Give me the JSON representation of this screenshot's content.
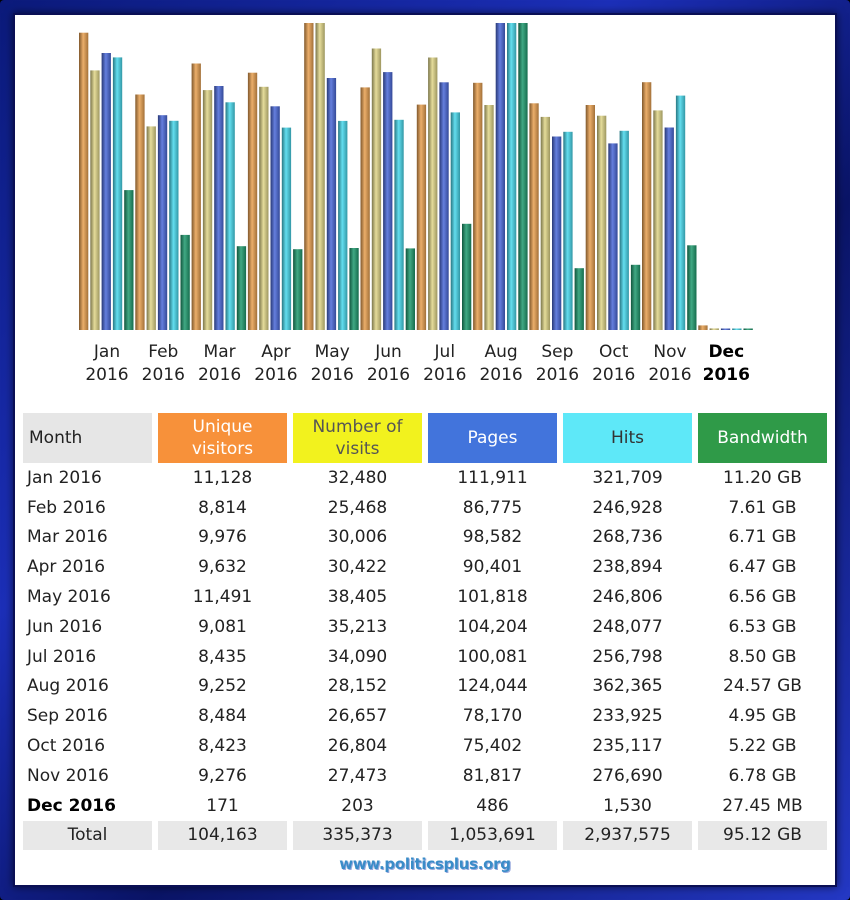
{
  "chart_data": {
    "type": "bar",
    "categories": [
      "Jan 2016",
      "Feb 2016",
      "Mar 2016",
      "Apr 2016",
      "May 2016",
      "Jun 2016",
      "Jul 2016",
      "Aug 2016",
      "Sep 2016",
      "Oct 2016",
      "Nov 2016",
      "Dec 2016"
    ],
    "tick_labels": [
      [
        "Jan",
        "2016"
      ],
      [
        "Feb",
        "2016"
      ],
      [
        "Mar",
        "2016"
      ],
      [
        "Apr",
        "2016"
      ],
      [
        "May",
        "2016"
      ],
      [
        "Jun",
        "2016"
      ],
      [
        "Jul",
        "2016"
      ],
      [
        "Aug",
        "2016"
      ],
      [
        "Sep",
        "2016"
      ],
      [
        "Oct",
        "2016"
      ],
      [
        "Nov",
        "2016"
      ],
      [
        "Dec",
        "2016"
      ]
    ],
    "current_month_index": 11,
    "series": [
      {
        "name": "Unique visitors",
        "color": "#e8a050",
        "values": [
          11128,
          8814,
          9976,
          9632,
          11491,
          9081,
          8435,
          9252,
          8484,
          8423,
          9276,
          171
        ]
      },
      {
        "name": "Number of visits",
        "color": "#e0d688",
        "values": [
          32480,
          25468,
          30006,
          30422,
          38405,
          35213,
          34090,
          28152,
          26657,
          26804,
          27473,
          203
        ]
      },
      {
        "name": "Pages",
        "color": "#4a68d8",
        "values": [
          111911,
          86775,
          98582,
          90401,
          101818,
          104204,
          100081,
          124044,
          78170,
          75402,
          81817,
          486
        ]
      },
      {
        "name": "Hits",
        "color": "#48d8ec",
        "values": [
          321709,
          246928,
          268736,
          238894,
          246806,
          248077,
          256798,
          362365,
          233925,
          235117,
          276690,
          1530
        ]
      },
      {
        "name": "Bandwidth (GB)",
        "color": "#1f9a6e",
        "values": [
          11.2,
          7.61,
          6.71,
          6.47,
          6.56,
          6.53,
          8.5,
          24.57,
          4.95,
          5.22,
          6.78,
          0.0268
        ]
      }
    ],
    "grid": false,
    "legend": "none"
  },
  "table": {
    "headers": [
      "Month",
      "Unique\nvisitors",
      "Number of\nvisits",
      "Pages",
      "Hits",
      "Bandwidth"
    ],
    "rows": [
      [
        "Jan 2016",
        "11,128",
        "32,480",
        "111,911",
        "321,709",
        "11.20 GB"
      ],
      [
        "Feb 2016",
        "8,814",
        "25,468",
        "86,775",
        "246,928",
        "7.61 GB"
      ],
      [
        "Mar 2016",
        "9,976",
        "30,006",
        "98,582",
        "268,736",
        "6.71 GB"
      ],
      [
        "Apr 2016",
        "9,632",
        "30,422",
        "90,401",
        "238,894",
        "6.47 GB"
      ],
      [
        "May 2016",
        "11,491",
        "38,405",
        "101,818",
        "246,806",
        "6.56 GB"
      ],
      [
        "Jun 2016",
        "9,081",
        "35,213",
        "104,204",
        "248,077",
        "6.53 GB"
      ],
      [
        "Jul 2016",
        "8,435",
        "34,090",
        "100,081",
        "256,798",
        "8.50 GB"
      ],
      [
        "Aug 2016",
        "9,252",
        "28,152",
        "124,044",
        "362,365",
        "24.57 GB"
      ],
      [
        "Sep 2016",
        "8,484",
        "26,657",
        "78,170",
        "233,925",
        "4.95 GB"
      ],
      [
        "Oct 2016",
        "8,423",
        "26,804",
        "75,402",
        "235,117",
        "5.22 GB"
      ],
      [
        "Nov 2016",
        "9,276",
        "27,473",
        "81,817",
        "276,690",
        "6.78 GB"
      ],
      [
        "Dec 2016",
        "171",
        "203",
        "486",
        "1,530",
        "27.45 MB"
      ]
    ],
    "total": [
      "Total",
      "104,163",
      "335,373",
      "1,053,691",
      "2,937,575",
      "95.12 GB"
    ]
  },
  "watermark": "www.politicsplus.org"
}
